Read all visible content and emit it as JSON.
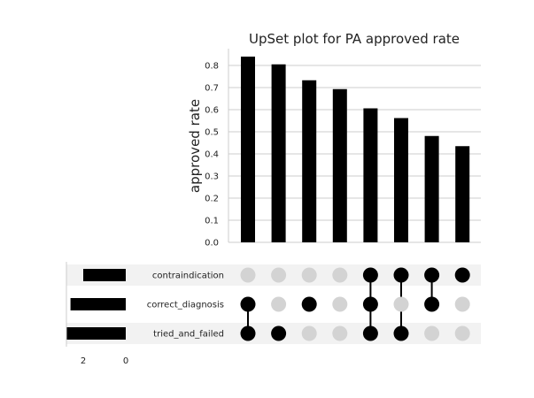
{
  "chart_data": {
    "type": "upset",
    "title": "UpSet plot for PA approved rate",
    "ylabel": "approved rate",
    "ylim": [
      0,
      0.85
    ],
    "yticks": [
      "0.0",
      "0.1",
      "0.2",
      "0.3",
      "0.4",
      "0.5",
      "0.6",
      "0.7",
      "0.8"
    ],
    "sets": [
      {
        "name": "contraindication",
        "size": 2.0
      },
      {
        "name": "correct_diagnosis",
        "size": 2.6
      },
      {
        "name": "tried_and_failed",
        "size": 2.8
      }
    ],
    "set_size_ticks": [
      "2",
      "0"
    ],
    "intersections": [
      {
        "members": [
          "tried_and_failed",
          "correct_diagnosis"
        ],
        "value": 0.84
      },
      {
        "members": [
          "tried_and_failed"
        ],
        "value": 0.805
      },
      {
        "members": [
          "correct_diagnosis"
        ],
        "value": 0.733
      },
      {
        "members": [],
        "value": 0.693
      },
      {
        "members": [
          "contraindication",
          "correct_diagnosis",
          "tried_and_failed"
        ],
        "value": 0.606
      },
      {
        "members": [
          "contraindication",
          "tried_and_failed"
        ],
        "value": 0.562
      },
      {
        "members": [
          "contraindication",
          "correct_diagnosis"
        ],
        "value": 0.481
      },
      {
        "members": [
          "contraindication"
        ],
        "value": 0.435
      }
    ],
    "grid": true,
    "colors": {
      "bar": "#000000",
      "dot_active": "#000000",
      "dot_inactive": "#d3d3d3",
      "grid": "#cccccc",
      "shade": "#f2f2f2"
    }
  }
}
